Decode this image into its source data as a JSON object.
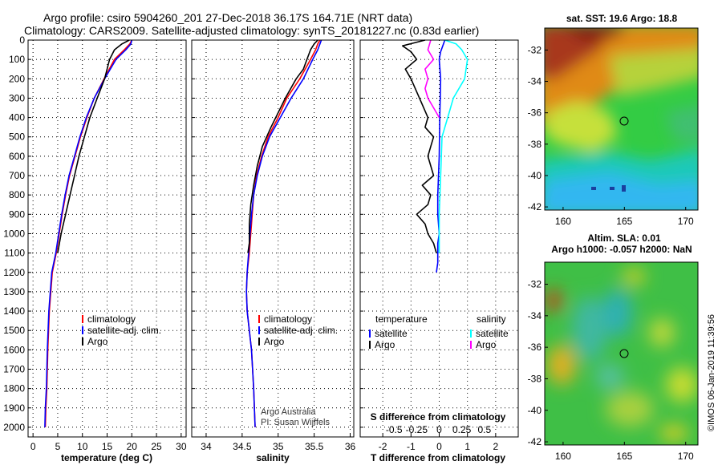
{
  "header": {
    "line1": "Argo profile: csiro 5904260_201 27-Dec-2018 36.17S 164.71E (NRT data)",
    "line2": "Climatology: CARS2009. Satellite-adjusted climatology: synTS_20181227.nc (0.83d earlier)"
  },
  "credits": {
    "argo_australia": "Argo Australia",
    "pi": "PI: Susan Wijffels",
    "imos_stamp": "©IMOS 06-Jan-2019 11:39:56"
  },
  "colors": {
    "climatology": "#ff0000",
    "satellite": "#0000ff",
    "argo": "#000000",
    "salinity_satellite": "#00ffff",
    "salinity_argo": "#ff00ff"
  },
  "chart_data": [
    {
      "type": "line",
      "id": "temperature",
      "xlabel": "temperature (deg C)",
      "ylabel": "",
      "xlim": [
        -1,
        31
      ],
      "ylim": [
        2050,
        0
      ],
      "xticks": [
        "0",
        "5",
        "10",
        "15",
        "20",
        "25",
        "30"
      ],
      "yticks": [
        "0",
        "100",
        "200",
        "300",
        "400",
        "500",
        "600",
        "700",
        "800",
        "900",
        "1000",
        "1100",
        "1200",
        "1300",
        "1400",
        "1500",
        "1600",
        "1700",
        "1800",
        "1900",
        "2000"
      ],
      "grid": true,
      "legend": {
        "placement": "lower-middle",
        "entries": [
          "climatology",
          "satellite-adj. clim.",
          "Argo"
        ]
      },
      "series": [
        {
          "name": "climatology",
          "color": "#ff0000",
          "x": [
            20.0,
            19.6,
            18.5,
            16.5,
            14.4,
            12.4,
            10.9,
            9.6,
            8.5,
            7.4,
            6.6,
            5.9,
            5.3,
            4.7,
            3.9,
            3.3,
            3.0,
            2.8,
            2.6,
            2.5
          ],
          "y": [
            0,
            20,
            50,
            100,
            200,
            300,
            400,
            500,
            600,
            700,
            800,
            900,
            1000,
            1100,
            1200,
            1400,
            1600,
            1800,
            1900,
            2000
          ]
        },
        {
          "name": "satellite-adj. clim.",
          "color": "#0000ff",
          "x": [
            20.0,
            19.8,
            18.8,
            16.8,
            14.5,
            12.4,
            10.8,
            9.5,
            8.4,
            7.3,
            6.5,
            5.8,
            5.2,
            4.6,
            3.8,
            3.2,
            2.9,
            2.7,
            2.5,
            2.4
          ],
          "y": [
            0,
            20,
            50,
            100,
            200,
            300,
            400,
            500,
            600,
            700,
            800,
            900,
            1000,
            1100,
            1200,
            1400,
            1600,
            1800,
            1900,
            2000
          ]
        },
        {
          "name": "Argo",
          "color": "#000000",
          "x": [
            19.5,
            18.0,
            16.5,
            15.5,
            14.5,
            13.0,
            11.5,
            10.4,
            9.3,
            8.4,
            7.5,
            6.6,
            5.7,
            5.0
          ],
          "y": [
            0,
            20,
            50,
            100,
            200,
            300,
            400,
            500,
            600,
            700,
            800,
            900,
            1000,
            1100
          ]
        }
      ]
    },
    {
      "type": "line",
      "id": "salinity",
      "xlabel": "salinity",
      "ylabel": "",
      "xlim": [
        33.8,
        36.05
      ],
      "ylim": [
        2050,
        0
      ],
      "xticks": [
        "34",
        "34.5",
        "35",
        "35.5",
        "36"
      ],
      "grid": true,
      "legend": {
        "placement": "lower-middle",
        "entries": [
          "climatology",
          "satellite-adj. clim.",
          "Argo"
        ]
      },
      "series": [
        {
          "name": "climatology",
          "color": "#ff0000",
          "x": [
            35.58,
            35.55,
            35.52,
            35.45,
            35.3,
            35.12,
            35.0,
            34.86,
            34.77,
            34.7,
            34.66,
            34.64,
            34.62,
            34.6,
            34.57,
            34.56,
            34.57,
            34.6,
            34.63,
            34.66,
            34.68
          ],
          "y": [
            0,
            20,
            50,
            100,
            200,
            300,
            400,
            500,
            600,
            700,
            800,
            900,
            1000,
            1100,
            1200,
            1300,
            1400,
            1500,
            1600,
            1800,
            2000
          ]
        },
        {
          "name": "satellite-adj. clim.",
          "color": "#0000ff",
          "x": [
            35.6,
            35.58,
            35.55,
            35.48,
            35.35,
            35.18,
            35.03,
            34.88,
            34.78,
            34.71,
            34.66,
            34.63,
            34.61,
            34.59,
            34.57,
            34.56,
            34.57,
            34.6,
            34.63,
            34.66,
            34.68
          ],
          "y": [
            0,
            20,
            50,
            100,
            200,
            300,
            400,
            500,
            600,
            700,
            800,
            900,
            1000,
            1100,
            1200,
            1300,
            1400,
            1500,
            1600,
            1800,
            2000
          ]
        },
        {
          "name": "Argo",
          "color": "#000000",
          "x": [
            35.55,
            35.5,
            35.45,
            35.4,
            35.35,
            35.25,
            35.1,
            34.9,
            34.78,
            34.71,
            34.66,
            34.62,
            34.6,
            34.6,
            34.58
          ],
          "y": [
            0,
            20,
            50,
            100,
            150,
            200,
            300,
            450,
            550,
            650,
            750,
            850,
            950,
            1050,
            1100
          ]
        }
      ]
    },
    {
      "type": "line",
      "id": "difference",
      "xlabel": "T difference from climatology",
      "secondary_xlabel": "S difference from climatology",
      "ylabel": "",
      "xlim": [
        -2.8,
        2.8
      ],
      "ylim": [
        2050,
        0
      ],
      "xticks": [
        "-2",
        "-1",
        "0",
        "1",
        "2"
      ],
      "secondary_xticks": [
        "-0.5",
        "-0.25",
        "0",
        "0.25",
        "0.5"
      ],
      "grid": true,
      "legend": {
        "placement": "lower-middle",
        "headers": [
          "temperature",
          "salinity"
        ],
        "entries": [
          "satellite",
          "Argo",
          "satellite",
          "Argo"
        ]
      },
      "series": [
        {
          "name": "temperature satellite",
          "color": "#0000ff",
          "x": [
            0.2,
            0.15,
            0.05,
            0.0,
            0.05,
            0.02,
            0.0,
            -0.05,
            -0.05,
            0.0,
            -0.05,
            -0.05,
            -0.05,
            -0.1
          ],
          "y": [
            0,
            20,
            60,
            100,
            200,
            400,
            600,
            800,
            900,
            1000,
            1050,
            1100,
            1150,
            1200
          ]
        },
        {
          "name": "temperature Argo",
          "color": "#000000",
          "x": [
            -0.5,
            -1.3,
            -1.0,
            -0.8,
            -1.2,
            -1.0,
            -0.7,
            -0.4,
            -0.5,
            -0.2,
            -0.3,
            -0.4,
            -0.2,
            -0.6,
            -0.3,
            -0.4,
            -0.8,
            -0.5,
            -0.4,
            -0.2,
            -0.1
          ],
          "y": [
            0,
            30,
            60,
            100,
            150,
            200,
            300,
            400,
            450,
            500,
            550,
            600,
            700,
            750,
            800,
            850,
            900,
            950,
            1000,
            1050,
            1100
          ]
        },
        {
          "name": "salinity satellite",
          "color": "#00ffff",
          "x": [
            0.2,
            0.6,
            0.8,
            1.0,
            0.9,
            0.5,
            0.3,
            0.1,
            0.05,
            0.0,
            0.0
          ],
          "y": [
            0,
            20,
            50,
            100,
            200,
            300,
            400,
            500,
            700,
            900,
            1100
          ]
        },
        {
          "name": "salinity Argo",
          "color": "#ff00ff",
          "x": [
            -0.3,
            -0.4,
            -0.2,
            -0.5,
            -0.4,
            -0.5,
            -0.4,
            -0.2,
            0.0
          ],
          "y": [
            0,
            50,
            100,
            150,
            200,
            250,
            300,
            350,
            400
          ]
        }
      ]
    },
    {
      "type": "heatmap",
      "id": "sst_map",
      "title": "sat. SST: 19.6 Argo: 18.8",
      "xlim": [
        158.5,
        171
      ],
      "ylim": [
        -42.2,
        -30.6
      ],
      "xticks": [
        "160",
        "165",
        "170"
      ],
      "yticks": [
        "-32",
        "-34",
        "-36",
        "-38",
        "-40",
        "-42"
      ],
      "marker": {
        "lon": 164.71,
        "lat": -36.17
      }
    },
    {
      "type": "heatmap",
      "id": "sla_map",
      "title": "Altim. SLA: 0.01",
      "subtitle": "Argo h1000: -0.057 h2000: NaN",
      "xlim": [
        158.5,
        171
      ],
      "ylim": [
        -42.2,
        -30.6
      ],
      "xticks": [
        "160",
        "165",
        "170"
      ],
      "yticks": [
        "-32",
        "-34",
        "-36",
        "-38",
        "-40",
        "-42"
      ],
      "marker": {
        "lon": 164.71,
        "lat": -36.17
      }
    }
  ]
}
